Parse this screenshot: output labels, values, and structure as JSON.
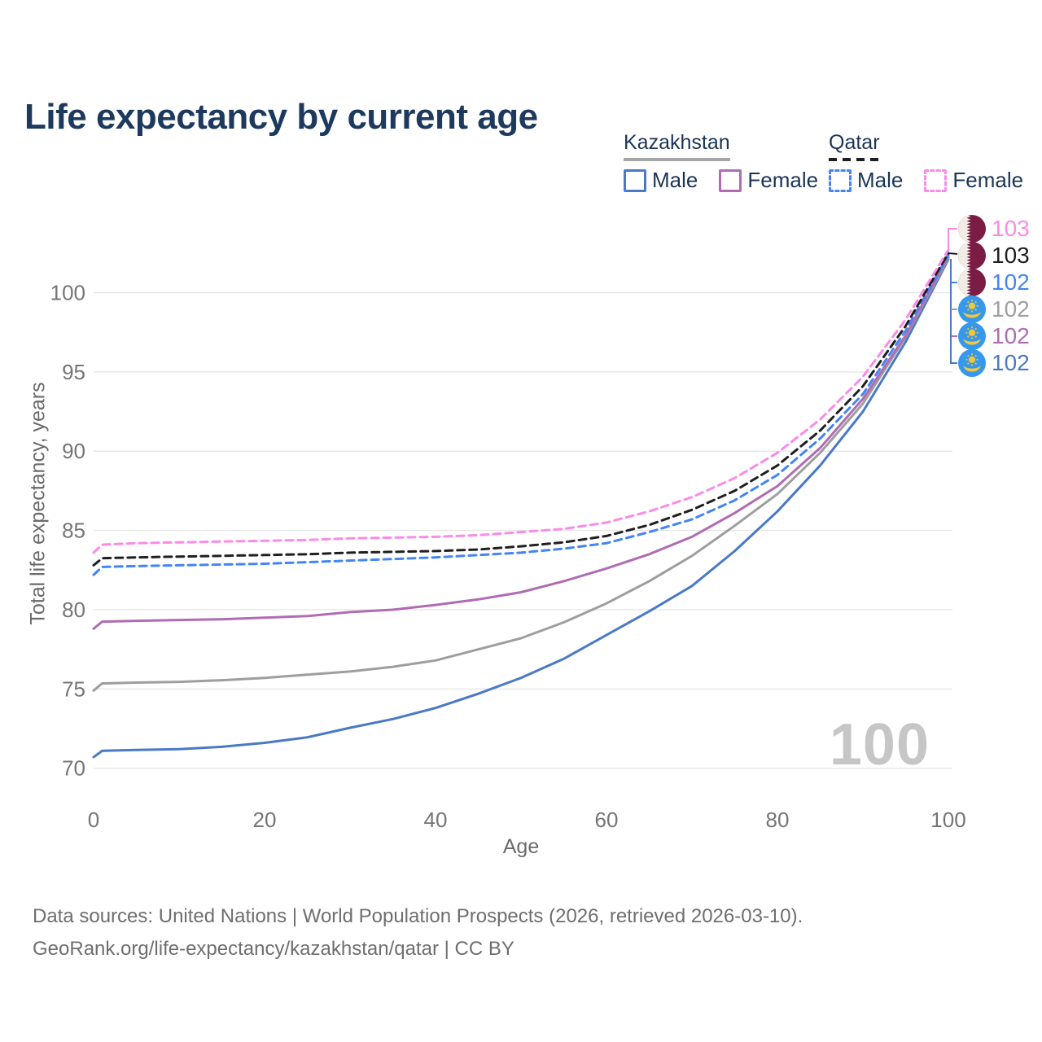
{
  "title": "Life expectancy by current age",
  "legend": {
    "groups": [
      {
        "name": "Kazakhstan",
        "line_style": "solid",
        "underline_color": "#a6a6a6",
        "items": [
          {
            "label": "Male",
            "color": "#4a79c6"
          },
          {
            "label": "Female",
            "color": "#b06cb3"
          }
        ]
      },
      {
        "name": "Qatar",
        "line_style": "dashed",
        "underline_color": "#1f1f1f",
        "items": [
          {
            "label": "Male",
            "color": "#4285f4"
          },
          {
            "label": "Female",
            "color": "#fb8ae8"
          }
        ]
      }
    ]
  },
  "chart_data": {
    "type": "line",
    "title": "Life expectancy by current age",
    "xlabel": "Age",
    "ylabel": "Total life expectancy, years",
    "xlim": [
      0,
      100
    ],
    "ylim": [
      70,
      103
    ],
    "xticks": [
      0,
      20,
      40,
      60,
      80,
      100
    ],
    "yticks": [
      70,
      75,
      80,
      85,
      90,
      95,
      100
    ],
    "grid": "horizontal",
    "watermark": "100",
    "ages": [
      0,
      1,
      5,
      10,
      15,
      20,
      25,
      30,
      35,
      40,
      45,
      50,
      55,
      60,
      65,
      70,
      75,
      80,
      85,
      90,
      95,
      100
    ],
    "series": [
      {
        "id": "kazakhstan-male",
        "name": "Kazakhstan Male",
        "color": "#4a79c6",
        "dash": false,
        "values": [
          70.7,
          71.1,
          71.15,
          71.2,
          71.35,
          71.6,
          71.95,
          72.55,
          73.1,
          73.8,
          74.7,
          75.7,
          76.9,
          78.4,
          79.9,
          81.5,
          83.7,
          86.2,
          89.1,
          92.5,
          96.9,
          102.1
        ]
      },
      {
        "id": "kazakhstan-total",
        "name": "Kazakhstan Both sexes",
        "color": "#9e9e9e",
        "dash": false,
        "values": [
          74.9,
          75.35,
          75.4,
          75.45,
          75.55,
          75.7,
          75.9,
          76.1,
          76.4,
          76.8,
          77.5,
          78.2,
          79.2,
          80.4,
          81.8,
          83.4,
          85.3,
          87.3,
          89.9,
          93.0,
          97.2,
          102.2
        ]
      },
      {
        "id": "kazakhstan-female",
        "name": "Kazakhstan Female",
        "color": "#b06cb3",
        "dash": false,
        "values": [
          78.8,
          79.25,
          79.3,
          79.35,
          79.4,
          79.5,
          79.6,
          79.85,
          80.0,
          80.3,
          80.65,
          81.1,
          81.8,
          82.6,
          83.5,
          84.6,
          86.1,
          87.8,
          90.2,
          93.3,
          97.3,
          102.3
        ]
      },
      {
        "id": "qatar-male",
        "name": "Qatar Male",
        "color": "#4285f4",
        "dash": true,
        "values": [
          82.2,
          82.7,
          82.75,
          82.8,
          82.85,
          82.9,
          83.0,
          83.1,
          83.2,
          83.3,
          83.45,
          83.6,
          83.85,
          84.2,
          84.9,
          85.7,
          86.9,
          88.5,
          90.8,
          93.6,
          97.6,
          102.4
        ]
      },
      {
        "id": "qatar-total",
        "name": "Qatar Both sexes",
        "color": "#1f1f1f",
        "dash": true,
        "values": [
          82.8,
          83.25,
          83.3,
          83.35,
          83.4,
          83.45,
          83.5,
          83.6,
          83.65,
          83.7,
          83.8,
          84.0,
          84.25,
          84.65,
          85.35,
          86.3,
          87.5,
          89.1,
          91.3,
          94.1,
          97.9,
          102.5
        ]
      },
      {
        "id": "qatar-female",
        "name": "Qatar Female",
        "color": "#fb8ae8",
        "dash": true,
        "values": [
          83.6,
          84.1,
          84.2,
          84.25,
          84.3,
          84.35,
          84.4,
          84.5,
          84.55,
          84.6,
          84.7,
          84.9,
          85.1,
          85.5,
          86.2,
          87.1,
          88.3,
          89.9,
          92.0,
          94.7,
          98.3,
          102.7
        ]
      }
    ],
    "end_labels": [
      {
        "value": "103",
        "flag": "qatar",
        "series": "qatar-female",
        "color": "#fb8ae8"
      },
      {
        "value": "103",
        "flag": "qatar",
        "series": "qatar-total",
        "color": "#1f1f1f"
      },
      {
        "value": "102",
        "flag": "qatar",
        "series": "qatar-male",
        "color": "#4285f4"
      },
      {
        "value": "102",
        "flag": "kazakhstan",
        "series": "kazakhstan-total",
        "color": "#9e9e9e"
      },
      {
        "value": "102",
        "flag": "kazakhstan",
        "series": "kazakhstan-female",
        "color": "#b06cb3"
      },
      {
        "value": "102",
        "flag": "kazakhstan",
        "series": "kazakhstan-male",
        "color": "#4a79c6"
      }
    ]
  },
  "footer": {
    "line1": "Data sources: United Nations | World Population Prospects (2026, retrieved 2026-03-10).",
    "line2": "GeoRank.org/life-expectancy/kazakhstan/qatar | CC BY"
  },
  "colors": {
    "title_text": "#1d3a5e",
    "axis_text": "#757575",
    "gridline": "#e7e7e7",
    "watermark": "#c6c6c6",
    "qatar_flag_maroon": "#7a1c44",
    "kazakhstan_flag_blue": "#3598ea",
    "kazakhstan_flag_gold": "#f2c63d"
  }
}
